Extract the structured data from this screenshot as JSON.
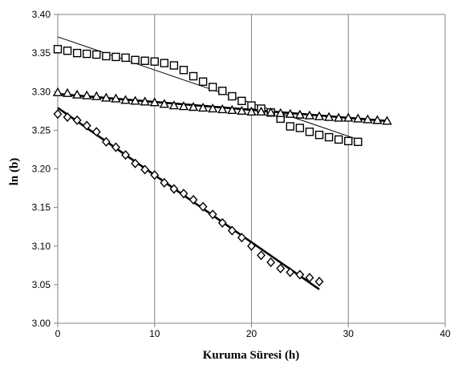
{
  "chart_data": {
    "type": "scatter",
    "title": "",
    "xlabel": "Kuruma Süresi (h)",
    "ylabel": "ln (b)",
    "xlim": [
      0,
      40
    ],
    "ylim": [
      3.0,
      3.4
    ],
    "x_ticks": [
      "0",
      "10",
      "20",
      "30",
      "40"
    ],
    "y_ticks": [
      "3.00",
      "3.05",
      "3.10",
      "3.15",
      "3.20",
      "3.25",
      "3.30",
      "3.35",
      "3.40"
    ],
    "grid": "vertical-major",
    "legend": "none",
    "series": [
      {
        "marker": "square",
        "x": [
          0,
          1,
          2,
          3,
          4,
          5,
          6,
          7,
          8,
          9,
          10,
          11,
          12,
          13,
          14,
          15,
          16,
          17,
          18,
          19,
          20,
          21,
          22,
          23,
          24,
          25,
          26,
          27,
          28,
          29,
          30,
          31
        ],
        "y": [
          3.355,
          3.353,
          3.35,
          3.349,
          3.348,
          3.346,
          3.345,
          3.344,
          3.341,
          3.34,
          3.339,
          3.337,
          3.334,
          3.328,
          3.32,
          3.313,
          3.306,
          3.301,
          3.294,
          3.288,
          3.282,
          3.278,
          3.273,
          3.265,
          3.255,
          3.253,
          3.248,
          3.244,
          3.241,
          3.238,
          3.236,
          3.235
        ]
      },
      {
        "marker": "triangle",
        "x": [
          0,
          1,
          2,
          3,
          4,
          5,
          6,
          7,
          8,
          9,
          10,
          11,
          12,
          13,
          14,
          15,
          16,
          17,
          18,
          19,
          20,
          21,
          22,
          23,
          24,
          25,
          26,
          27,
          28,
          29,
          30,
          31,
          32,
          33,
          34
        ],
        "y": [
          3.299,
          3.298,
          3.296,
          3.295,
          3.294,
          3.292,
          3.291,
          3.289,
          3.288,
          3.287,
          3.286,
          3.284,
          3.282,
          3.281,
          3.28,
          3.279,
          3.278,
          3.277,
          3.276,
          3.275,
          3.274,
          3.274,
          3.273,
          3.272,
          3.271,
          3.27,
          3.269,
          3.268,
          3.267,
          3.266,
          3.266,
          3.265,
          3.264,
          3.263,
          3.262
        ]
      },
      {
        "marker": "diamond",
        "x": [
          0,
          1,
          2,
          3,
          4,
          5,
          6,
          7,
          8,
          9,
          10,
          11,
          12,
          13,
          14,
          15,
          16,
          17,
          18,
          19,
          20,
          21,
          22,
          23,
          24,
          25,
          26,
          27
        ],
        "y": [
          3.271,
          3.267,
          3.263,
          3.256,
          3.248,
          3.235,
          3.228,
          3.218,
          3.207,
          3.199,
          3.192,
          3.182,
          3.174,
          3.168,
          3.16,
          3.151,
          3.141,
          3.13,
          3.12,
          3.111,
          3.1,
          3.088,
          3.079,
          3.071,
          3.066,
          3.063,
          3.059,
          3.054
        ]
      }
    ],
    "trendlines": [
      {
        "x": [
          0,
          31
        ],
        "y": [
          3.371,
          3.238
        ],
        "weight": "thin"
      },
      {
        "x": [
          0,
          34
        ],
        "y": [
          3.297,
          3.262
        ],
        "weight": "thick"
      },
      {
        "x": [
          0,
          27
        ],
        "y": [
          3.279,
          3.044
        ],
        "weight": "thick"
      }
    ]
  }
}
